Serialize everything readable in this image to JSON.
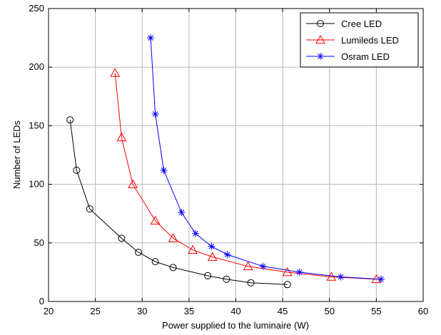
{
  "chart_data": {
    "type": "line",
    "title": "",
    "xlabel": "Power supplied to the luminaire (W)",
    "ylabel": "Number of LEDs",
    "xlim": [
      20,
      60
    ],
    "ylim": [
      0,
      250
    ],
    "xticks": [
      20,
      25,
      30,
      35,
      40,
      45,
      50,
      55,
      60
    ],
    "yticks": [
      0,
      50,
      100,
      150,
      200,
      250
    ],
    "grid": true,
    "legend_position": "top-right",
    "series": [
      {
        "name": "Cree LED",
        "color": "#000000",
        "marker": "circle",
        "x": [
          22.3,
          23.0,
          24.4,
          27.8,
          29.6,
          31.4,
          33.3,
          37.0,
          39.0,
          41.6,
          45.5
        ],
        "y": [
          155,
          112,
          79,
          54,
          42,
          34,
          29,
          22,
          19,
          16,
          14.5
        ]
      },
      {
        "name": "Lumileds LED",
        "color": "#ff0000",
        "marker": "triangle",
        "x": [
          27.1,
          27.8,
          29.0,
          31.4,
          33.3,
          35.4,
          37.5,
          41.3,
          45.5,
          50.2,
          55.0
        ],
        "y": [
          195,
          140,
          100,
          69,
          54,
          44,
          38,
          30,
          25,
          21,
          19
        ]
      },
      {
        "name": "Osram LED",
        "color": "#0000ff",
        "marker": "star",
        "x": [
          30.9,
          31.4,
          32.3,
          34.2,
          35.7,
          37.4,
          39.1,
          42.9,
          46.8,
          51.2,
          55.5
        ],
        "y": [
          225,
          160,
          112,
          76,
          58,
          47,
          40,
          30,
          25,
          21,
          19
        ]
      }
    ]
  }
}
